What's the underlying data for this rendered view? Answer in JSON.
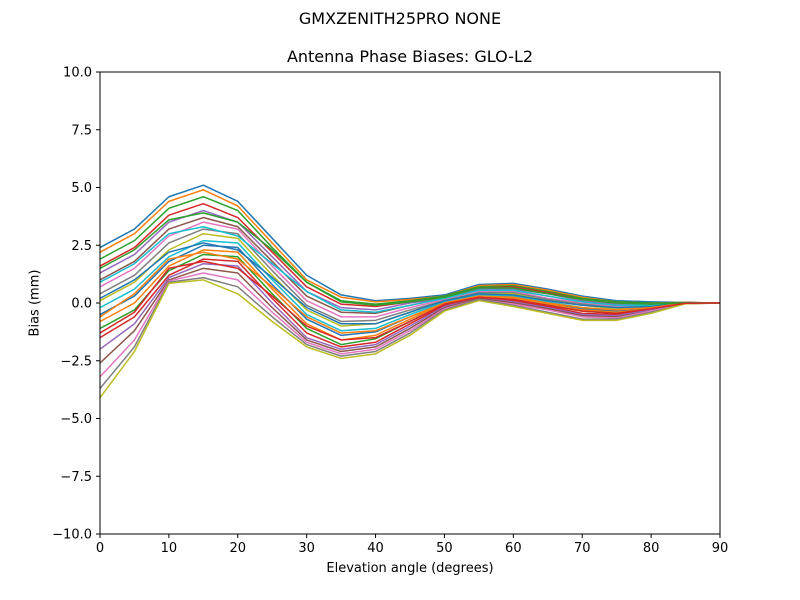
{
  "figure": {
    "suptitle": "GMXZENITH25PRO  NONE"
  },
  "chart_data": {
    "type": "line",
    "title": "Antenna Phase Biases: GLO-L2",
    "xlabel": "Elevation angle (degrees)",
    "ylabel": "Bias (mm)",
    "xlim": [
      0,
      90
    ],
    "ylim": [
      -10.0,
      10.0
    ],
    "grid": false,
    "x_ticks": [
      0,
      10,
      20,
      30,
      40,
      50,
      60,
      70,
      80,
      90
    ],
    "y_ticks": [
      -10.0,
      -7.5,
      -5.0,
      -2.5,
      0.0,
      2.5,
      5.0,
      7.5,
      10.0
    ],
    "y_tick_labels": [
      "−10.0",
      "−7.5",
      "−5.0",
      "−2.5",
      "0.0",
      "2.5",
      "5.0",
      "7.5",
      "10.0"
    ],
    "x": [
      0,
      5,
      10,
      15,
      20,
      25,
      30,
      35,
      40,
      45,
      50,
      55,
      60,
      65,
      70,
      75,
      80,
      85,
      90
    ],
    "colors": [
      "#1f77b4",
      "#ff7f0e",
      "#2ca02c",
      "#d62728",
      "#9467bd",
      "#8c564b",
      "#e377c2",
      "#7f7f7f",
      "#bcbd22",
      "#17becf"
    ],
    "series": [
      {
        "values": [
          2.4,
          3.2,
          4.6,
          5.1,
          4.4,
          2.8,
          1.2,
          0.35,
          0.1,
          0.2,
          0.35,
          0.8,
          0.85,
          0.6,
          0.3,
          0.1,
          0.05,
          0.02,
          0.0
        ]
      },
      {
        "values": [
          2.2,
          3.0,
          4.4,
          4.9,
          4.2,
          2.6,
          1.0,
          0.25,
          0.05,
          0.15,
          0.3,
          0.75,
          0.8,
          0.55,
          0.25,
          0.05,
          0.0,
          0.02,
          0.0
        ]
      },
      {
        "values": [
          1.9,
          2.7,
          4.1,
          4.6,
          4.0,
          2.4,
          0.9,
          0.1,
          -0.05,
          0.1,
          0.3,
          0.7,
          0.75,
          0.5,
          0.2,
          0.05,
          0.0,
          0.02,
          0.0
        ]
      },
      {
        "values": [
          1.6,
          2.4,
          3.8,
          4.3,
          3.7,
          2.2,
          0.7,
          -0.05,
          -0.15,
          0.05,
          0.25,
          0.65,
          0.7,
          0.45,
          0.15,
          0.0,
          -0.05,
          0.02,
          0.0
        ]
      },
      {
        "values": [
          1.3,
          2.1,
          3.5,
          4.0,
          3.5,
          2.0,
          0.5,
          -0.2,
          -0.3,
          0.0,
          0.2,
          0.6,
          0.6,
          0.4,
          0.1,
          -0.05,
          -0.05,
          0.01,
          0.0
        ]
      },
      {
        "values": [
          1.0,
          1.8,
          3.2,
          3.7,
          3.3,
          1.8,
          0.3,
          -0.4,
          -0.45,
          -0.1,
          0.2,
          0.55,
          0.55,
          0.3,
          0.05,
          -0.1,
          -0.1,
          0.01,
          0.0
        ]
      },
      {
        "values": [
          0.7,
          1.5,
          2.9,
          3.5,
          3.2,
          1.6,
          0.1,
          -0.6,
          -0.6,
          -0.2,
          0.15,
          0.5,
          0.5,
          0.2,
          0.0,
          -0.15,
          -0.1,
          0.0,
          0.0
        ]
      },
      {
        "values": [
          0.4,
          1.2,
          2.6,
          3.2,
          3.0,
          1.4,
          -0.1,
          -0.8,
          -0.75,
          -0.3,
          0.1,
          0.45,
          0.45,
          0.15,
          -0.05,
          -0.2,
          -0.15,
          0.0,
          0.0
        ]
      },
      {
        "values": [
          0.1,
          0.9,
          2.3,
          3.0,
          2.8,
          1.2,
          -0.3,
          -1.0,
          -0.9,
          -0.4,
          0.1,
          0.4,
          0.4,
          0.1,
          -0.1,
          -0.25,
          -0.15,
          0.0,
          0.0
        ]
      },
      {
        "values": [
          -0.2,
          0.6,
          2.0,
          2.7,
          2.6,
          1.0,
          -0.5,
          -1.2,
          -1.1,
          -0.5,
          0.05,
          0.35,
          0.3,
          0.05,
          -0.2,
          -0.3,
          -0.2,
          0.0,
          0.0
        ]
      },
      {
        "values": [
          -0.5,
          0.3,
          1.8,
          2.5,
          2.4,
          0.8,
          -0.7,
          -1.4,
          -1.25,
          -0.6,
          0.0,
          0.3,
          0.25,
          0.0,
          -0.25,
          -0.35,
          -0.2,
          -0.01,
          0.0
        ]
      },
      {
        "values": [
          -0.8,
          0.0,
          1.6,
          2.3,
          2.2,
          0.6,
          -0.9,
          -1.6,
          -1.4,
          -0.7,
          0.0,
          0.3,
          0.2,
          -0.05,
          -0.3,
          -0.4,
          -0.25,
          -0.01,
          0.0
        ]
      },
      {
        "values": [
          -1.1,
          -0.3,
          1.4,
          2.1,
          2.0,
          0.4,
          -1.1,
          -1.8,
          -1.55,
          -0.8,
          -0.05,
          0.25,
          0.15,
          -0.1,
          -0.35,
          -0.45,
          -0.25,
          -0.01,
          0.0
        ]
      },
      {
        "values": [
          -1.5,
          -0.6,
          1.2,
          1.9,
          1.8,
          0.2,
          -1.3,
          -1.9,
          -1.7,
          -0.9,
          -0.1,
          0.25,
          0.1,
          -0.15,
          -0.45,
          -0.5,
          -0.3,
          -0.02,
          0.0
        ]
      },
      {
        "values": [
          -2.0,
          -0.9,
          1.1,
          1.7,
          1.6,
          0.0,
          -1.5,
          -2.0,
          -1.8,
          -1.0,
          -0.15,
          0.2,
          0.05,
          -0.2,
          -0.5,
          -0.55,
          -0.3,
          -0.02,
          0.0
        ]
      },
      {
        "values": [
          -2.6,
          -1.2,
          1.0,
          1.5,
          1.3,
          -0.2,
          -1.6,
          -2.1,
          -1.9,
          -1.1,
          -0.2,
          0.2,
          0.0,
          -0.25,
          -0.55,
          -0.6,
          -0.35,
          -0.02,
          0.0
        ]
      },
      {
        "values": [
          -3.2,
          -1.6,
          0.95,
          1.3,
          1.0,
          -0.4,
          -1.7,
          -2.2,
          -2.0,
          -1.2,
          -0.25,
          0.15,
          -0.05,
          -0.3,
          -0.6,
          -0.65,
          -0.35,
          -0.02,
          0.0
        ]
      },
      {
        "values": [
          -3.7,
          -1.9,
          0.9,
          1.1,
          0.7,
          -0.6,
          -1.8,
          -2.3,
          -2.1,
          -1.3,
          -0.3,
          0.15,
          -0.1,
          -0.4,
          -0.7,
          -0.7,
          -0.4,
          -0.03,
          0.0
        ]
      },
      {
        "values": [
          -4.1,
          -2.1,
          0.85,
          1.0,
          0.4,
          -0.8,
          -1.9,
          -2.4,
          -2.2,
          -1.4,
          -0.35,
          0.1,
          -0.15,
          -0.45,
          -0.75,
          -0.75,
          -0.45,
          -0.03,
          0.0
        ]
      },
      {
        "values": [
          0.9,
          1.7,
          3.0,
          3.3,
          2.9,
          1.7,
          0.5,
          -0.3,
          -0.4,
          -0.1,
          0.2,
          0.55,
          0.55,
          0.3,
          0.05,
          -0.1,
          -0.1,
          0.0,
          0.0
        ]
      },
      {
        "values": [
          0.2,
          1.0,
          2.2,
          2.6,
          2.3,
          1.1,
          -0.2,
          -0.9,
          -0.9,
          -0.4,
          0.1,
          0.4,
          0.35,
          0.1,
          -0.1,
          -0.2,
          -0.15,
          0.0,
          0.0
        ]
      },
      {
        "values": [
          -0.6,
          0.4,
          1.9,
          2.2,
          1.9,
          0.7,
          -0.6,
          -1.3,
          -1.2,
          -0.6,
          0.0,
          0.3,
          0.25,
          0.0,
          -0.2,
          -0.3,
          -0.2,
          0.0,
          0.0
        ]
      },
      {
        "values": [
          1.5,
          2.3,
          3.6,
          3.9,
          3.5,
          2.3,
          0.9,
          0.05,
          -0.1,
          0.05,
          0.25,
          0.65,
          0.65,
          0.4,
          0.15,
          0.0,
          -0.05,
          0.01,
          0.0
        ]
      },
      {
        "values": [
          -1.3,
          -0.4,
          1.5,
          1.8,
          1.5,
          0.3,
          -1.0,
          -1.6,
          -1.5,
          -0.8,
          -0.05,
          0.25,
          0.15,
          -0.1,
          -0.35,
          -0.45,
          -0.25,
          -0.01,
          0.0
        ]
      }
    ]
  }
}
